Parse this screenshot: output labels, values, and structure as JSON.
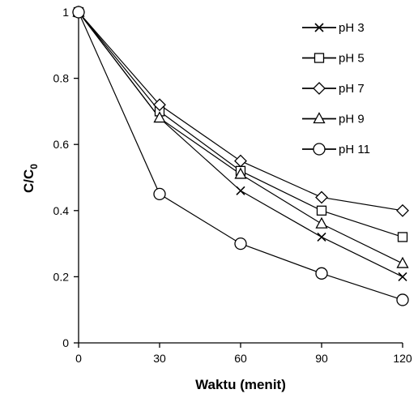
{
  "chart_data": {
    "type": "line",
    "title": "",
    "xlabel": "Waktu (menit)",
    "ylabel": "C/C0",
    "ylabel_main": "C/C",
    "ylabel_sub": "0",
    "x": [
      0,
      30,
      60,
      90,
      120
    ],
    "x_ticks": [
      "0",
      "30",
      "60",
      "90",
      "120"
    ],
    "y_ticks": [
      "0",
      "0.2",
      "0.4",
      "0.6",
      "0.8",
      "1"
    ],
    "xlim": [
      0,
      120
    ],
    "ylim": [
      0,
      1
    ],
    "grid": false,
    "legend_position": "top-right",
    "series": [
      {
        "name": "pH 3",
        "marker": "x",
        "values": [
          1,
          0.68,
          0.46,
          0.32,
          0.2
        ]
      },
      {
        "name": "pH 5",
        "marker": "square",
        "values": [
          1,
          0.7,
          0.52,
          0.4,
          0.32
        ]
      },
      {
        "name": "pH 7",
        "marker": "diamond",
        "values": [
          1,
          0.72,
          0.55,
          0.44,
          0.4
        ]
      },
      {
        "name": "pH 9",
        "marker": "triangle",
        "values": [
          1,
          0.68,
          0.51,
          0.36,
          0.24
        ]
      },
      {
        "name": "pH 11",
        "marker": "circle",
        "values": [
          1,
          0.45,
          0.3,
          0.21,
          0.13
        ]
      }
    ],
    "colors": {
      "line": "#000000",
      "marker_fill": "#ffffff",
      "axis": "#000000"
    }
  }
}
